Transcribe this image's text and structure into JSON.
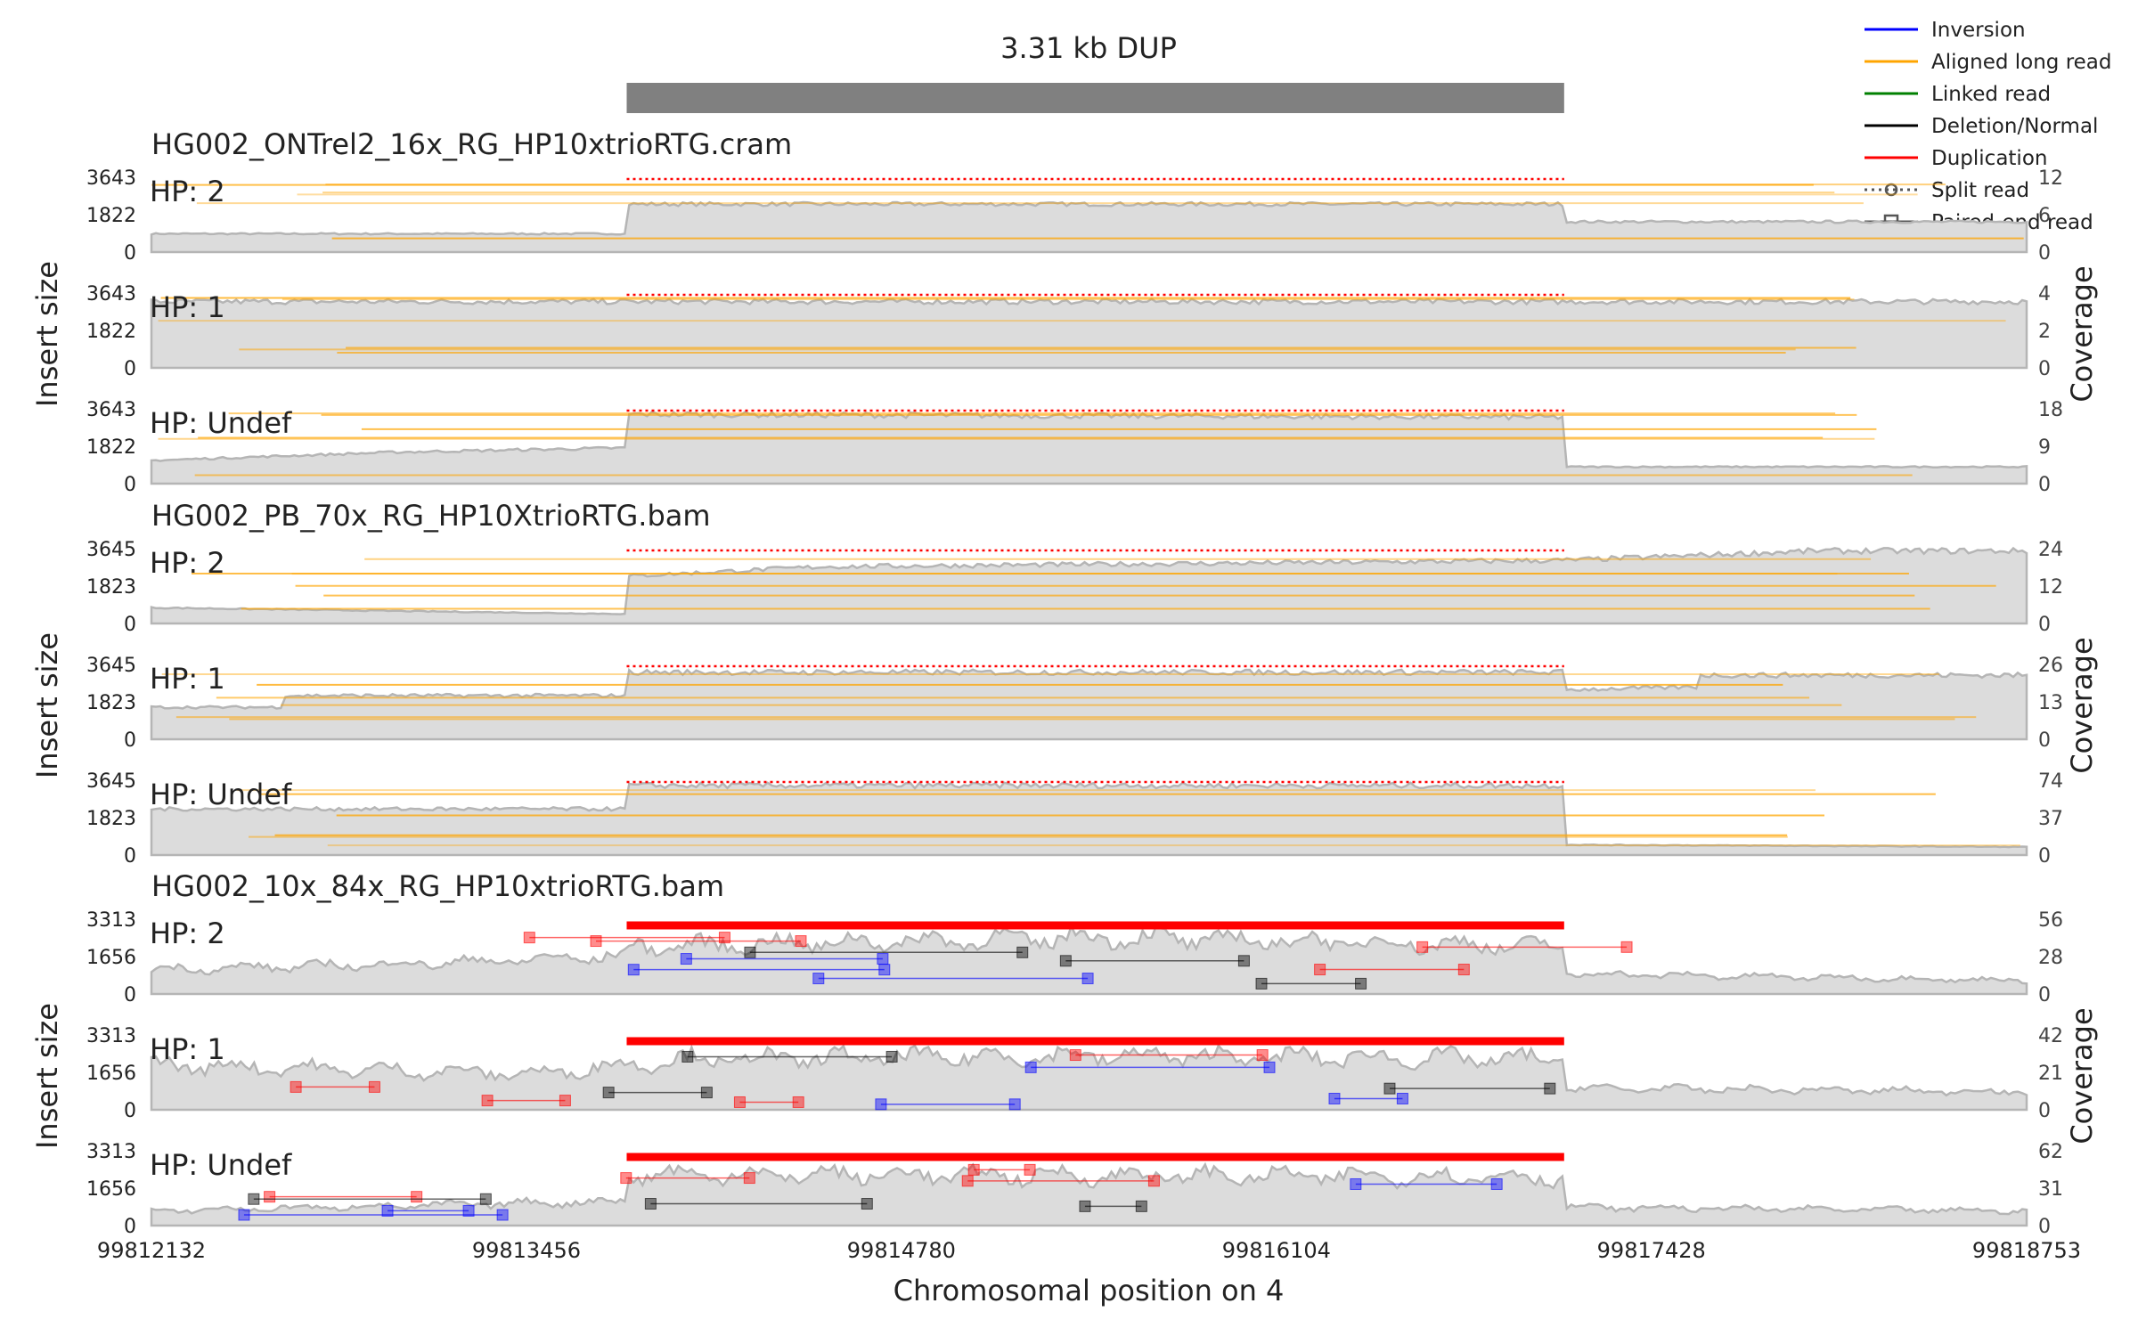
{
  "chart_data": {
    "type": "samplot",
    "title": "3.31 kb DUP",
    "sv_span": [
      99813810,
      99817120
    ],
    "xlabel": "Chromosomal position on 4",
    "ylabel_left": "Insert size",
    "ylabel_right": "Coverage",
    "xlim": [
      99812132,
      99818753
    ],
    "xticks": [
      "99812132",
      "99813456",
      "99814780",
      "99816104",
      "99817428",
      "99818753"
    ],
    "xtick_values": [
      99812132,
      99813456,
      99814780,
      99816104,
      99817428,
      99818753
    ],
    "legend": {
      "position": "top-right",
      "items": [
        {
          "label": "Inversion",
          "color": "#0000ff",
          "kind": "line"
        },
        {
          "label": "Aligned long read",
          "color": "#ffa500",
          "kind": "line"
        },
        {
          "label": "Linked read",
          "color": "#008000",
          "kind": "line"
        },
        {
          "label": "Deletion/Normal",
          "color": "#000000",
          "kind": "line"
        },
        {
          "label": "Duplication",
          "color": "#ff0000",
          "kind": "line"
        },
        {
          "label": "Split read",
          "color": "#555555",
          "kind": "dotted-circle"
        },
        {
          "label": "Paired-end read",
          "color": "#555555",
          "kind": "square"
        }
      ]
    },
    "samples": [
      {
        "name": "HG002_ONTrel2_16x_RG_HP10xtrioRTG.cram",
        "type": "long",
        "tracks": [
          {
            "hp": "HP: 2",
            "ymax": "3643",
            "ymid": "1822",
            "ymin": "0",
            "cmax": "12",
            "cmid": "6",
            "cmin": "0",
            "coverage": [
              [
                99812132,
                2.9
              ],
              [
                99813810,
                2.9
              ],
              [
                99813811,
                7.6
              ],
              [
                99817120,
                7.6
              ],
              [
                99817121,
                4.8
              ],
              [
                99818753,
                4.8
              ]
            ]
          },
          {
            "hp": "HP: 1",
            "ymax": "3643",
            "ymid": "1822",
            "ymin": "0",
            "cmax": "4",
            "cmid": "2",
            "cmin": "0",
            "coverage": [
              [
                99812132,
                3.5
              ],
              [
                99818753,
                3.5
              ]
            ]
          },
          {
            "hp": "HP: Undef",
            "ymax": "3643",
            "ymid": "1822",
            "ymin": "0",
            "cmax": "18",
            "cmid": "9",
            "cmin": "0",
            "coverage": [
              [
                99812132,
                5.5
              ],
              [
                99813000,
                7.5
              ],
              [
                99813810,
                8.5
              ],
              [
                99813811,
                16.5
              ],
              [
                99817120,
                15.8
              ],
              [
                99817121,
                4.0
              ],
              [
                99818753,
                4.0
              ]
            ]
          }
        ]
      },
      {
        "name": "HG002_PB_70x_RG_HP10XtrioRTG.bam",
        "type": "long",
        "tracks": [
          {
            "hp": "HP: 2",
            "ymax": "3645",
            "ymid": "1823",
            "ymin": "0",
            "cmax": "24",
            "cmid": "12",
            "cmin": "0",
            "coverage": [
              [
                99812132,
                5
              ],
              [
                99813810,
                3
              ],
              [
                99813811,
                15
              ],
              [
                99814500,
                18
              ],
              [
                99817120,
                20
              ],
              [
                99817121,
                20
              ],
              [
                99818000,
                23
              ],
              [
                99818753,
                23
              ]
            ]
          },
          {
            "hp": "HP: 1",
            "ymax": "3645",
            "ymid": "1823",
            "ymin": "0",
            "cmax": "26",
            "cmid": "13",
            "cmin": "0",
            "coverage": [
              [
                99812132,
                11
              ],
              [
                99812600,
                11
              ],
              [
                99812601,
                15
              ],
              [
                99813810,
                15
              ],
              [
                99813811,
                23
              ],
              [
                99817120,
                23
              ],
              [
                99817121,
                17
              ],
              [
                99817600,
                18
              ],
              [
                99817601,
                22
              ],
              [
                99818753,
                22
              ]
            ]
          },
          {
            "hp": "HP: Undef",
            "ymax": "3645",
            "ymid": "1823",
            "ymin": "0",
            "cmax": "74",
            "cmid": "37",
            "cmin": "0",
            "coverage": [
              [
                99812132,
                45
              ],
              [
                99813810,
                45
              ],
              [
                99813811,
                68
              ],
              [
                99817120,
                68
              ],
              [
                99817121,
                10
              ],
              [
                99818753,
                8
              ]
            ]
          }
        ]
      },
      {
        "name": "HG002_10x_84x_RG_HP10xtrioRTG.bam",
        "type": "linked",
        "tracks": [
          {
            "hp": "HP: 2",
            "ymax": "3313",
            "ymid": "1656",
            "ymin": "0",
            "cmax": "56",
            "cmid": "28",
            "cmin": "0",
            "coverage": [
              [
                99812132,
                18
              ],
              [
                99813000,
                22
              ],
              [
                99813810,
                28
              ],
              [
                99813811,
                35
              ],
              [
                99815500,
                42
              ],
              [
                99817120,
                35
              ],
              [
                99817121,
                15
              ],
              [
                99818753,
                10
              ]
            ]
          },
          {
            "hp": "HP: 1",
            "ymax": "3313",
            "ymid": "1656",
            "ymin": "0",
            "cmax": "42",
            "cmid": "21",
            "cmin": "0",
            "coverage": [
              [
                99812132,
                25
              ],
              [
                99813500,
                20
              ],
              [
                99814000,
                28
              ],
              [
                99815500,
                30
              ],
              [
                99817120,
                28
              ],
              [
                99817121,
                12
              ],
              [
                99818753,
                10
              ]
            ]
          },
          {
            "hp": "HP: Undef",
            "ymax": "3313",
            "ymid": "1656",
            "ymin": "0",
            "cmax": "62",
            "cmid": "31",
            "cmin": "0",
            "coverage": [
              [
                99812132,
                12
              ],
              [
                99813810,
                20
              ],
              [
                99813811,
                42
              ],
              [
                99817120,
                40
              ],
              [
                99817121,
                15
              ],
              [
                99818753,
                12
              ]
            ]
          }
        ]
      }
    ]
  }
}
